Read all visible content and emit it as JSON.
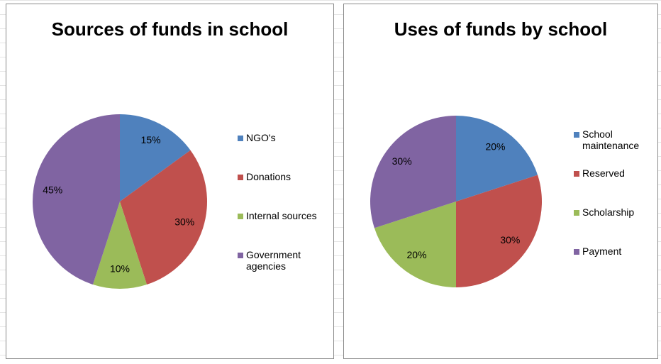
{
  "chart_data": [
    {
      "type": "pie",
      "title": "Sources of funds in school",
      "categories": [
        "NGO's",
        "Donations",
        "Internal sources",
        "Government agencies"
      ],
      "values": [
        15,
        30,
        10,
        45
      ],
      "value_labels": [
        "15%",
        "30%",
        "10%",
        "45%"
      ],
      "colors": [
        "#4f81bd",
        "#c0504d",
        "#9bbb59",
        "#8064a2"
      ]
    },
    {
      "type": "pie",
      "title": "Uses of funds by school",
      "categories": [
        "School maintenance",
        "Reserved",
        "Scholarship",
        "Payment"
      ],
      "values": [
        20,
        30,
        20,
        30
      ],
      "value_labels": [
        "20%",
        "30%",
        "20%",
        "30%"
      ],
      "colors": [
        "#4f81bd",
        "#c0504d",
        "#9bbb59",
        "#8064a2"
      ]
    }
  ]
}
